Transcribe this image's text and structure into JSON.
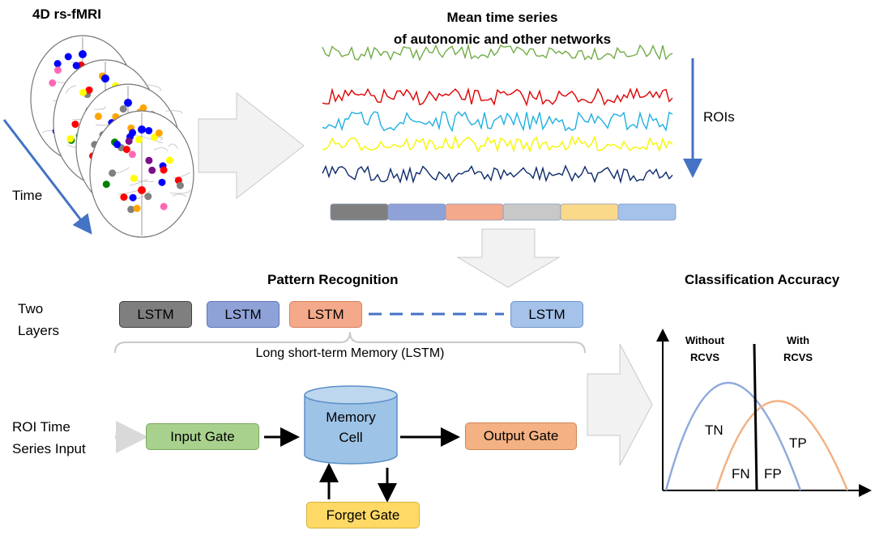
{
  "brain_panel": {
    "title": "4D rs-fMRI",
    "time_label": "Time"
  },
  "timeseries_panel": {
    "title_line1": "Mean time series",
    "title_line2": "of autonomic and other networks",
    "rois_label": "ROIs",
    "series_colors": [
      "#70ad47",
      "#e00000",
      "#1fb0e0",
      "#f5f500",
      "#0c2a6b"
    ],
    "segment_colors": [
      "#7f7f7f",
      "#8fa2d8",
      "#f4a98a",
      "#c8c8c8",
      "#fbd98a",
      "#a4c2ea"
    ]
  },
  "pattern": {
    "title": "Pattern Recognition",
    "layers_line1": "Two",
    "layers_line2": "Layers",
    "lstm_boxes": [
      {
        "label": "LSTM",
        "color": "#7f7f7f"
      },
      {
        "label": "LSTM",
        "color": "#8fa2d8"
      },
      {
        "label": "LSTM",
        "color": "#f4a98a"
      },
      {
        "label": "LSTM",
        "color": "#a4c2ea"
      }
    ],
    "brace_label": "Long short-term Memory (LSTM)"
  },
  "lstm_cell": {
    "input_line1": "ROI Time",
    "input_line2": "Series Input",
    "input_gate": "Input Gate",
    "memory_line1": "Memory",
    "memory_line2": "Cell",
    "output_gate": "Output Gate",
    "forget_gate": "Forget Gate"
  },
  "classification": {
    "title": "Classification Accuracy",
    "without_line1": "Without",
    "without_line2": "RCVS",
    "with_line1": "With",
    "with_line2": "RCVS",
    "tn": "TN",
    "tp": "TP",
    "fn": "FN",
    "fp": "FP"
  }
}
